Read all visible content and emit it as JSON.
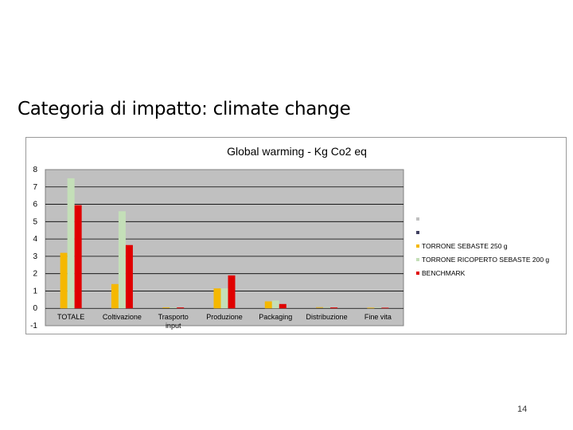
{
  "slide": {
    "title": "Categoria di impatto: climate change",
    "page_number": "14"
  },
  "chart_data": {
    "type": "bar",
    "title": "Global warming -  Kg Co2 eq",
    "xlabel": "",
    "ylabel": "",
    "ylim": [
      -1,
      8
    ],
    "yticks": [
      8,
      7,
      6,
      5,
      4,
      3,
      2,
      1,
      0,
      -1
    ],
    "categories": [
      "TOTALE",
      "Coltivazione",
      "Trasporto input",
      "Produzione",
      "Packaging",
      "Distribuzione",
      "Fine vita"
    ],
    "series": [
      {
        "name": "",
        "color": "#c0c0c0",
        "values": [
          0,
          0,
          0,
          0,
          0,
          0,
          0
        ]
      },
      {
        "name": "",
        "color": "#404060",
        "values": [
          0,
          0,
          0,
          0,
          0,
          0,
          0
        ]
      },
      {
        "name": "TORRONE SEBASTE 250 g",
        "color": "#f5b800",
        "values": [
          3.2,
          1.4,
          0.02,
          1.15,
          0.4,
          0.03,
          0.0
        ]
      },
      {
        "name": "TORRONE RICOPERTO SEBASTE 200 g",
        "color": "#c4dfb8",
        "values": [
          7.5,
          5.6,
          0.02,
          1.15,
          0.45,
          0.03,
          0.02
        ]
      },
      {
        "name": "BENCHMARK",
        "color": "#e00000",
        "values": [
          5.95,
          3.65,
          0.05,
          1.9,
          0.25,
          0.05,
          0.0
        ]
      }
    ],
    "plot_area_color": "#c0c0c0",
    "grid": true,
    "legend_position": "right"
  }
}
